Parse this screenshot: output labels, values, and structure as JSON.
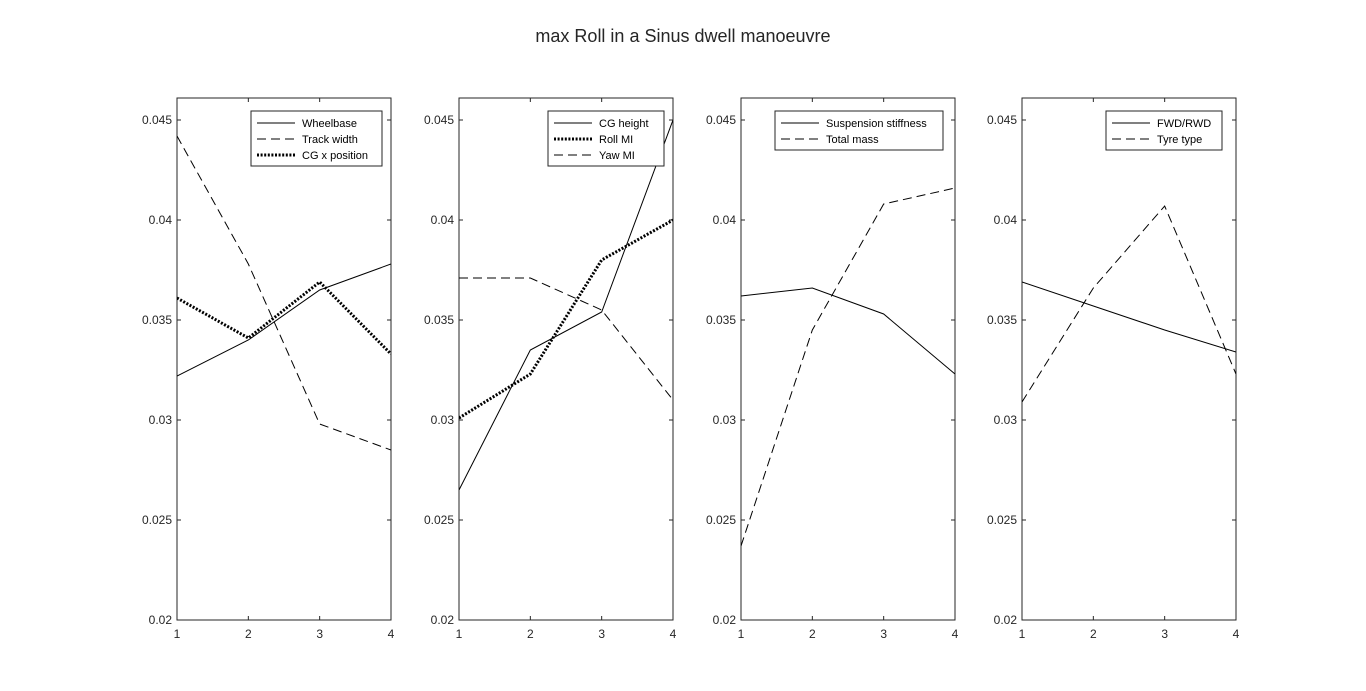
{
  "figure": {
    "title": "max Roll in a Sinus dwell manoeuvre"
  },
  "chart_data": [
    {
      "type": "line",
      "title": "",
      "xlabel": "",
      "ylabel": "",
      "x": [
        1,
        2,
        3,
        4
      ],
      "xlim": [
        1,
        4
      ],
      "ylim": [
        0.02,
        0.0461
      ],
      "xticks": [
        "1",
        "2",
        "3",
        "4"
      ],
      "yticks": [
        "0.02",
        "0.025",
        "0.03",
        "0.035",
        "0.04",
        "0.045"
      ],
      "legend": "top-right",
      "series": [
        {
          "name": "Wheelbase",
          "style": "solid",
          "values": [
            0.0322,
            0.034,
            0.0365,
            0.0378
          ]
        },
        {
          "name": "Track width",
          "style": "dashed",
          "values": [
            0.0442,
            0.0378,
            0.0298,
            0.0285
          ]
        },
        {
          "name": "CG x position",
          "style": "dotted",
          "values": [
            0.0361,
            0.0341,
            0.0369,
            0.0333
          ]
        }
      ]
    },
    {
      "type": "line",
      "title": "",
      "xlabel": "",
      "ylabel": "",
      "x": [
        1,
        2,
        3,
        4
      ],
      "xlim": [
        1,
        4
      ],
      "ylim": [
        0.02,
        0.0461
      ],
      "xticks": [
        "1",
        "2",
        "3",
        "4"
      ],
      "yticks": [
        "0.02",
        "0.025",
        "0.03",
        "0.035",
        "0.04",
        "0.045"
      ],
      "legend": "top-right",
      "series": [
        {
          "name": "CG height",
          "style": "solid",
          "values": [
            0.0265,
            0.0335,
            0.0354,
            0.045
          ]
        },
        {
          "name": "Roll MI",
          "style": "dotted",
          "values": [
            0.0301,
            0.0323,
            0.038,
            0.04
          ]
        },
        {
          "name": "Yaw MI",
          "style": "dashed",
          "values": [
            0.0371,
            0.0371,
            0.0355,
            0.031
          ]
        }
      ]
    },
    {
      "type": "line",
      "title": "",
      "xlabel": "",
      "ylabel": "",
      "x": [
        1,
        2,
        3,
        4
      ],
      "xlim": [
        1,
        4
      ],
      "ylim": [
        0.02,
        0.0461
      ],
      "xticks": [
        "1",
        "2",
        "3",
        "4"
      ],
      "yticks": [
        "0.02",
        "0.025",
        "0.03",
        "0.035",
        "0.04",
        "0.045"
      ],
      "legend": "top-right",
      "series": [
        {
          "name": "Suspension stiffness",
          "style": "solid",
          "values": [
            0.0362,
            0.0366,
            0.0353,
            0.0323
          ]
        },
        {
          "name": "Total mass",
          "style": "dashed",
          "values": [
            0.0237,
            0.0345,
            0.0408,
            0.0416
          ]
        }
      ]
    },
    {
      "type": "line",
      "title": "",
      "xlabel": "",
      "ylabel": "",
      "x": [
        1,
        2,
        3,
        4
      ],
      "xlim": [
        1,
        4
      ],
      "ylim": [
        0.02,
        0.0461
      ],
      "xticks": [
        "1",
        "2",
        "3",
        "4"
      ],
      "yticks": [
        "0.02",
        "0.025",
        "0.03",
        "0.035",
        "0.04",
        "0.045"
      ],
      "legend": "top-right",
      "series": [
        {
          "name": "FWD/RWD",
          "style": "solid",
          "values": [
            0.0369,
            0.0357,
            0.0345,
            0.0334
          ]
        },
        {
          "name": "Tyre type",
          "style": "dashed",
          "values": [
            0.0309,
            0.0366,
            0.0407,
            0.0323
          ]
        }
      ]
    }
  ]
}
